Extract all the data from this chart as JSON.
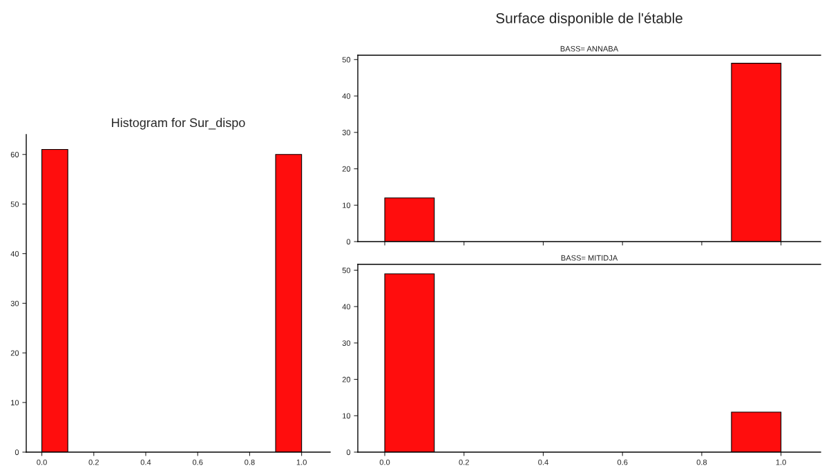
{
  "chart_data": [
    {
      "type": "histogram",
      "title": "Histogram for Sur_dispo",
      "bins": [
        0,
        0.1,
        0.2,
        0.3,
        0.4,
        0.5,
        0.6,
        0.7,
        0.8,
        0.9,
        1.0
      ],
      "values": [
        61,
        0,
        0,
        0,
        0,
        0,
        0,
        0,
        0,
        60
      ],
      "color": "#ff0d0d",
      "xlim": [
        -0.06,
        1.11
      ],
      "ylim": [
        0,
        64
      ],
      "xticks": [
        {
          "value": 0,
          "label": "0.0"
        },
        {
          "value": 0.2,
          "label": "0.2"
        },
        {
          "value": 0.4,
          "label": "0.4"
        },
        {
          "value": 0.6,
          "label": "0.6"
        },
        {
          "value": 0.8,
          "label": "0.8"
        },
        {
          "value": 1.0,
          "label": "1.0"
        }
      ],
      "yticks": [
        0,
        10,
        20,
        30,
        40,
        50,
        60
      ],
      "grid": false
    },
    {
      "type": "histogram",
      "title": "Surface disponible de l'étable",
      "subtitle": "BASS= ANNABA",
      "bins": [
        0,
        0.125,
        0.25,
        0.375,
        0.5,
        0.625,
        0.75,
        0.875,
        1.0
      ],
      "values": [
        12,
        0,
        0,
        0,
        0,
        0,
        0,
        49
      ],
      "color": "#ff0d0d",
      "xlim": [
        -0.068,
        1.1
      ],
      "ylim": [
        0,
        51.2
      ],
      "xticks": [
        {
          "value": 0,
          "label": null
        },
        {
          "value": 0.2,
          "label": null
        },
        {
          "value": 0.4,
          "label": null
        },
        {
          "value": 0.6,
          "label": null
        },
        {
          "value": 0.8,
          "label": null
        },
        {
          "value": 1.0,
          "label": null
        }
      ],
      "yticks": [
        0,
        10,
        20,
        30,
        40,
        50
      ],
      "tick_labels": "y",
      "grid": false
    },
    {
      "type": "histogram",
      "subtitle": "BASS= MITIDJA",
      "bins": [
        0,
        0.125,
        0.25,
        0.375,
        0.5,
        0.625,
        0.75,
        0.875,
        1.0
      ],
      "values": [
        49,
        0,
        0,
        0,
        0,
        0,
        0,
        11
      ],
      "color": "#ff0d0d",
      "xlim": [
        -0.068,
        1.1
      ],
      "ylim": [
        0,
        51.6
      ],
      "xticks": [
        {
          "value": 0,
          "label": "0.0"
        },
        {
          "value": 0.2,
          "label": "0.2"
        },
        {
          "value": 0.4,
          "label": "0.4"
        },
        {
          "value": 0.6,
          "label": "0.6"
        },
        {
          "value": 0.8,
          "label": "0.8"
        },
        {
          "value": 1.0,
          "label": "1.0"
        }
      ],
      "yticks": [
        0,
        10,
        20,
        30,
        40,
        50
      ],
      "grid": false
    }
  ]
}
